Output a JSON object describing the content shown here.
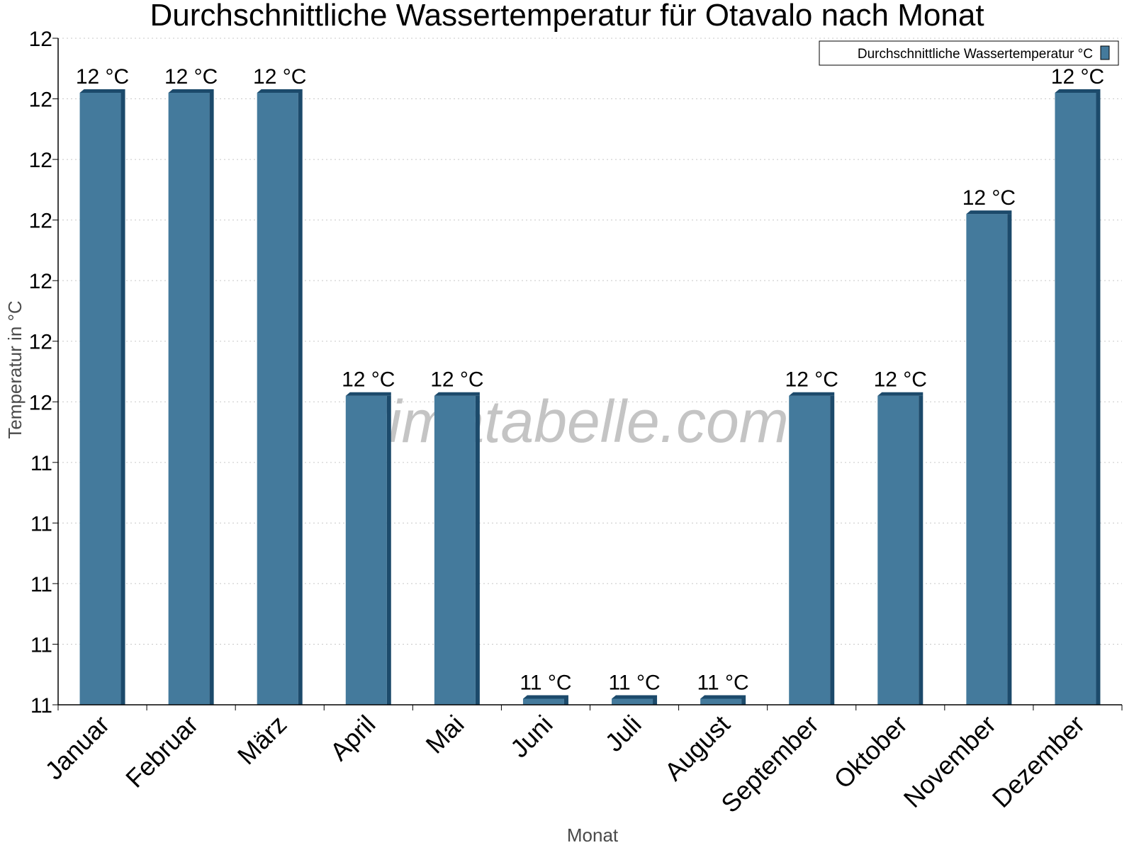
{
  "chart_data": {
    "type": "bar",
    "title": "Durchschnittliche Wassertemperatur für Otavalo nach Monat",
    "xlabel": "Monat",
    "ylabel": "Temperatur in °C",
    "categories": [
      "Januar",
      "Februar",
      "März",
      "April",
      "Mai",
      "Juni",
      "Juli",
      "August",
      "September",
      "Oktober",
      "November",
      "Dezember"
    ],
    "series": [
      {
        "name": "Durchschnittliche Wassertemperatur °C",
        "values": [
          11.88,
          11.88,
          11.88,
          11.63,
          11.63,
          11.38,
          11.38,
          11.38,
          11.63,
          11.63,
          11.78,
          11.88
        ],
        "labels": [
          "12 °C",
          "12 °C",
          "12 °C",
          "12 °C",
          "12 °C",
          "11 °C",
          "11 °C",
          "11 °C",
          "12 °C",
          "12 °C",
          "12 °C",
          "12 °C"
        ],
        "color": "#447a9c",
        "shade_color": "#1c4a6b"
      }
    ],
    "ylim": [
      11.375,
      11.925
    ],
    "yticks": [
      11.375,
      11.425,
      11.475,
      11.525,
      11.575,
      11.625,
      11.675,
      11.725,
      11.775,
      11.825,
      11.875,
      11.925
    ],
    "ytick_labels": [
      "11",
      "11",
      "11",
      "11",
      "11",
      "12",
      "12",
      "12",
      "12",
      "12",
      "12",
      "12"
    ],
    "grid": true,
    "legend_position": "top-right",
    "watermark": "klimatabelle.com"
  }
}
